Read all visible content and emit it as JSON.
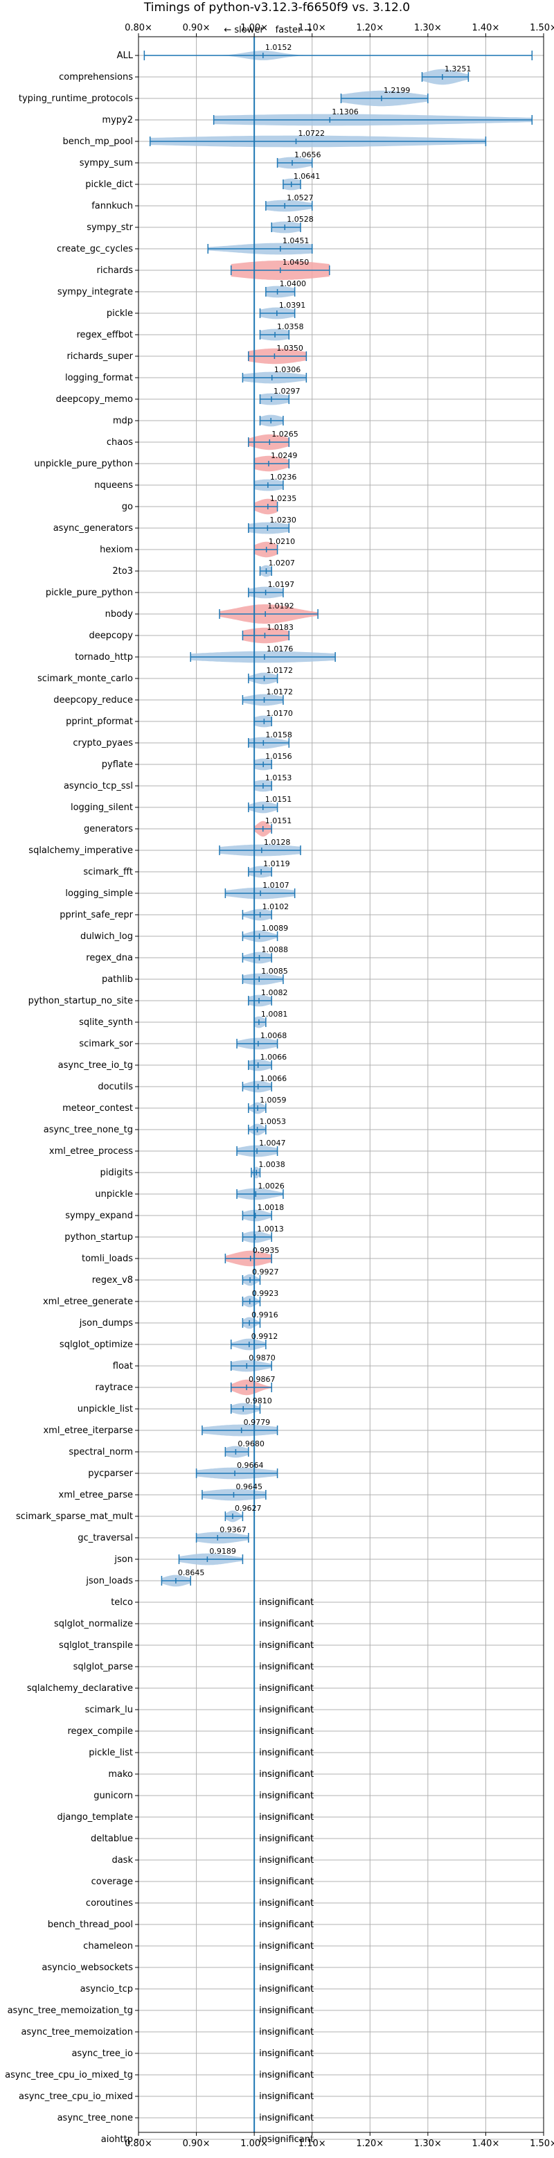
{
  "chart_data": {
    "type": "violin",
    "title": "Timings of python-v3.12.3-f6650f9 vs. 3.12.0",
    "annotation_slower": "← slower",
    "annotation_faster": "faster →",
    "xlim": [
      0.8,
      1.5
    ],
    "xticks": [
      0.8,
      0.9,
      1.0,
      1.1,
      1.2,
      1.3,
      1.4,
      1.5
    ],
    "xtick_labels": [
      "0.80×",
      "0.90×",
      "1.00×",
      "1.10×",
      "1.20×",
      "1.30×",
      "1.40×",
      "1.50×"
    ],
    "grid": true,
    "reference_line": 1.0,
    "colors": {
      "faster": "#a9c8e4",
      "slower": "#f4a6a6",
      "line": "#1f77b4",
      "grid": "#b0b0b0"
    },
    "insignificant_label": "insignificant",
    "benchmarks": [
      {
        "name": "ALL",
        "value": 1.0152,
        "label": "1.0152",
        "min": 0.81,
        "max": 1.48,
        "spread": 0.03,
        "width": 0.5,
        "color": "faster"
      },
      {
        "name": "comprehensions",
        "value": 1.3251,
        "label": "1.3251",
        "min": 1.29,
        "max": 1.37,
        "spread": 0.03,
        "width": 0.8,
        "color": "faster"
      },
      {
        "name": "typing_runtime_protocols",
        "value": 1.2199,
        "label": "1.2199",
        "min": 1.15,
        "max": 1.3,
        "spread": 0.06,
        "width": 0.8,
        "color": "faster"
      },
      {
        "name": "mypy2",
        "value": 1.1306,
        "label": "1.1306",
        "min": 0.93,
        "max": 1.48,
        "spread": 0.25,
        "width": 0.6,
        "color": "faster"
      },
      {
        "name": "bench_mp_pool",
        "value": 1.0722,
        "label": "1.0722",
        "min": 0.82,
        "max": 1.4,
        "spread": 0.25,
        "width": 0.6,
        "color": "faster"
      },
      {
        "name": "sympy_sum",
        "value": 1.0656,
        "label": "1.0656",
        "min": 1.04,
        "max": 1.1,
        "spread": 0.03,
        "width": 0.6,
        "color": "faster"
      },
      {
        "name": "pickle_dict",
        "value": 1.0641,
        "label": "1.0641",
        "min": 1.05,
        "max": 1.08,
        "spread": 0.02,
        "width": 0.6,
        "color": "faster"
      },
      {
        "name": "fannkuch",
        "value": 1.0527,
        "label": "1.0527",
        "min": 1.02,
        "max": 1.1,
        "spread": 0.04,
        "width": 0.6,
        "color": "faster"
      },
      {
        "name": "sympy_str",
        "value": 1.0528,
        "label": "1.0528",
        "min": 1.03,
        "max": 1.08,
        "spread": 0.03,
        "width": 0.6,
        "color": "faster"
      },
      {
        "name": "create_gc_cycles",
        "value": 1.0451,
        "label": "1.0451",
        "min": 0.92,
        "max": 1.1,
        "spread": 0.08,
        "width": 0.6,
        "color": "faster"
      },
      {
        "name": "richards",
        "value": 1.045,
        "label": "1.0450",
        "min": 0.96,
        "max": 1.13,
        "spread": 0.09,
        "width": 1.0,
        "color": "slower"
      },
      {
        "name": "sympy_integrate",
        "value": 1.04,
        "label": "1.0400",
        "min": 1.02,
        "max": 1.07,
        "spread": 0.03,
        "width": 0.6,
        "color": "faster"
      },
      {
        "name": "pickle",
        "value": 1.0391,
        "label": "1.0391",
        "min": 1.01,
        "max": 1.07,
        "spread": 0.03,
        "width": 0.6,
        "color": "faster"
      },
      {
        "name": "regex_effbot",
        "value": 1.0358,
        "label": "1.0358",
        "min": 1.01,
        "max": 1.06,
        "spread": 0.03,
        "width": 0.6,
        "color": "faster"
      },
      {
        "name": "richards_super",
        "value": 1.035,
        "label": "1.0350",
        "min": 0.99,
        "max": 1.09,
        "spread": 0.05,
        "width": 0.8,
        "color": "slower"
      },
      {
        "name": "logging_format",
        "value": 1.0306,
        "label": "1.0306",
        "min": 0.98,
        "max": 1.09,
        "spread": 0.05,
        "width": 0.6,
        "color": "faster"
      },
      {
        "name": "deepcopy_memo",
        "value": 1.0297,
        "label": "1.0297",
        "min": 1.01,
        "max": 1.06,
        "spread": 0.03,
        "width": 0.6,
        "color": "faster"
      },
      {
        "name": "mdp",
        "value": 1.0288,
        "label": "",
        "min": 1.01,
        "max": 1.05,
        "spread": 0.02,
        "width": 0.6,
        "color": "faster"
      },
      {
        "name": "chaos",
        "value": 1.0265,
        "label": "1.0265",
        "min": 0.99,
        "max": 1.06,
        "spread": 0.03,
        "width": 0.8,
        "color": "slower"
      },
      {
        "name": "unpickle_pure_python",
        "value": 1.0249,
        "label": "1.0249",
        "min": 1.0,
        "max": 1.06,
        "spread": 0.03,
        "width": 0.8,
        "color": "slower"
      },
      {
        "name": "nqueens",
        "value": 1.0236,
        "label": "1.0236",
        "min": 1.0,
        "max": 1.05,
        "spread": 0.03,
        "width": 0.6,
        "color": "faster"
      },
      {
        "name": "go",
        "value": 1.0235,
        "label": "1.0235",
        "min": 1.0,
        "max": 1.04,
        "spread": 0.02,
        "width": 0.8,
        "color": "slower"
      },
      {
        "name": "async_generators",
        "value": 1.023,
        "label": "1.0230",
        "min": 0.99,
        "max": 1.06,
        "spread": 0.04,
        "width": 0.6,
        "color": "faster"
      },
      {
        "name": "hexiom",
        "value": 1.021,
        "label": "1.0210",
        "min": 1.0,
        "max": 1.04,
        "spread": 0.02,
        "width": 0.8,
        "color": "slower"
      },
      {
        "name": "2to3",
        "value": 1.0207,
        "label": "1.0207",
        "min": 1.01,
        "max": 1.03,
        "spread": 0.01,
        "width": 0.6,
        "color": "faster"
      },
      {
        "name": "pickle_pure_python",
        "value": 1.0197,
        "label": "1.0197",
        "min": 0.99,
        "max": 1.05,
        "spread": 0.03,
        "width": 0.6,
        "color": "faster"
      },
      {
        "name": "nbody",
        "value": 1.0192,
        "label": "1.0192",
        "min": 0.94,
        "max": 1.11,
        "spread": 0.05,
        "width": 1.0,
        "color": "slower"
      },
      {
        "name": "deepcopy",
        "value": 1.0183,
        "label": "1.0183",
        "min": 0.98,
        "max": 1.06,
        "spread": 0.04,
        "width": 0.8,
        "color": "slower"
      },
      {
        "name": "tornado_http",
        "value": 1.0176,
        "label": "1.0176",
        "min": 0.89,
        "max": 1.14,
        "spread": 0.12,
        "width": 0.6,
        "color": "faster"
      },
      {
        "name": "scimark_monte_carlo",
        "value": 1.0172,
        "label": "1.0172",
        "min": 0.99,
        "max": 1.04,
        "spread": 0.02,
        "width": 0.6,
        "color": "faster"
      },
      {
        "name": "deepcopy_reduce",
        "value": 1.0172,
        "label": "1.0172",
        "min": 0.98,
        "max": 1.05,
        "spread": 0.03,
        "width": 0.6,
        "color": "faster"
      },
      {
        "name": "pprint_pformat",
        "value": 1.017,
        "label": "1.0170",
        "min": 1.0,
        "max": 1.03,
        "spread": 0.02,
        "width": 0.6,
        "color": "faster"
      },
      {
        "name": "crypto_pyaes",
        "value": 1.0158,
        "label": "1.0158",
        "min": 0.99,
        "max": 1.06,
        "spread": 0.03,
        "width": 0.6,
        "color": "faster"
      },
      {
        "name": "pyflate",
        "value": 1.0156,
        "label": "1.0156",
        "min": 1.0,
        "max": 1.03,
        "spread": 0.02,
        "width": 0.6,
        "color": "faster"
      },
      {
        "name": "asyncio_tcp_ssl",
        "value": 1.0153,
        "label": "1.0153",
        "min": 1.0,
        "max": 1.03,
        "spread": 0.02,
        "width": 0.6,
        "color": "faster"
      },
      {
        "name": "logging_silent",
        "value": 1.0151,
        "label": "1.0151",
        "min": 0.99,
        "max": 1.04,
        "spread": 0.02,
        "width": 0.6,
        "color": "faster"
      },
      {
        "name": "generators",
        "value": 1.0151,
        "label": "1.0151",
        "min": 1.0,
        "max": 1.03,
        "spread": 0.01,
        "width": 0.8,
        "color": "slower"
      },
      {
        "name": "sqlalchemy_imperative",
        "value": 1.0128,
        "label": "1.0128",
        "min": 0.94,
        "max": 1.08,
        "spread": 0.07,
        "width": 0.6,
        "color": "faster"
      },
      {
        "name": "scimark_fft",
        "value": 1.0119,
        "label": "1.0119",
        "min": 0.99,
        "max": 1.03,
        "spread": 0.02,
        "width": 0.6,
        "color": "faster"
      },
      {
        "name": "logging_simple",
        "value": 1.0107,
        "label": "1.0107",
        "min": 0.95,
        "max": 1.07,
        "spread": 0.05,
        "width": 0.6,
        "color": "faster"
      },
      {
        "name": "pprint_safe_repr",
        "value": 1.0102,
        "label": "1.0102",
        "min": 0.98,
        "max": 1.03,
        "spread": 0.02,
        "width": 0.6,
        "color": "faster"
      },
      {
        "name": "dulwich_log",
        "value": 1.0089,
        "label": "1.0089",
        "min": 0.98,
        "max": 1.04,
        "spread": 0.02,
        "width": 0.6,
        "color": "faster"
      },
      {
        "name": "regex_dna",
        "value": 1.0088,
        "label": "1.0088",
        "min": 0.98,
        "max": 1.03,
        "spread": 0.02,
        "width": 0.6,
        "color": "faster"
      },
      {
        "name": "pathlib",
        "value": 1.0085,
        "label": "1.0085",
        "min": 0.98,
        "max": 1.05,
        "spread": 0.03,
        "width": 0.6,
        "color": "faster"
      },
      {
        "name": "python_startup_no_site",
        "value": 1.0082,
        "label": "1.0082",
        "min": 0.99,
        "max": 1.03,
        "spread": 0.02,
        "width": 0.6,
        "color": "faster"
      },
      {
        "name": "sqlite_synth",
        "value": 1.0081,
        "label": "1.0081",
        "min": 1.0,
        "max": 1.02,
        "spread": 0.01,
        "width": 0.6,
        "color": "faster"
      },
      {
        "name": "scimark_sor",
        "value": 1.0068,
        "label": "1.0068",
        "min": 0.97,
        "max": 1.04,
        "spread": 0.03,
        "width": 0.6,
        "color": "faster"
      },
      {
        "name": "async_tree_io_tg",
        "value": 1.0066,
        "label": "1.0066",
        "min": 0.99,
        "max": 1.03,
        "spread": 0.02,
        "width": 0.6,
        "color": "faster"
      },
      {
        "name": "docutils",
        "value": 1.0066,
        "label": "1.0066",
        "min": 0.98,
        "max": 1.03,
        "spread": 0.02,
        "width": 0.6,
        "color": "faster"
      },
      {
        "name": "meteor_contest",
        "value": 1.0059,
        "label": "1.0059",
        "min": 0.99,
        "max": 1.02,
        "spread": 0.01,
        "width": 0.6,
        "color": "faster"
      },
      {
        "name": "async_tree_none_tg",
        "value": 1.0053,
        "label": "1.0053",
        "min": 0.99,
        "max": 1.02,
        "spread": 0.01,
        "width": 0.6,
        "color": "faster"
      },
      {
        "name": "xml_etree_process",
        "value": 1.0047,
        "label": "1.0047",
        "min": 0.97,
        "max": 1.04,
        "spread": 0.03,
        "width": 0.6,
        "color": "faster"
      },
      {
        "name": "pidigits",
        "value": 1.0038,
        "label": "1.0038",
        "min": 0.995,
        "max": 1.01,
        "spread": 0.005,
        "width": 0.6,
        "color": "faster"
      },
      {
        "name": "unpickle",
        "value": 1.0026,
        "label": "1.0026",
        "min": 0.97,
        "max": 1.05,
        "spread": 0.03,
        "width": 0.6,
        "color": "faster"
      },
      {
        "name": "sympy_expand",
        "value": 1.0018,
        "label": "1.0018",
        "min": 0.98,
        "max": 1.03,
        "spread": 0.02,
        "width": 0.6,
        "color": "faster"
      },
      {
        "name": "python_startup",
        "value": 1.0013,
        "label": "1.0013",
        "min": 0.98,
        "max": 1.03,
        "spread": 0.02,
        "width": 0.6,
        "color": "faster"
      },
      {
        "name": "tomli_loads",
        "value": 0.9935,
        "label": "0.9935",
        "min": 0.95,
        "max": 1.03,
        "spread": 0.03,
        "width": 0.8,
        "color": "slower"
      },
      {
        "name": "regex_v8",
        "value": 0.9927,
        "label": "0.9927",
        "min": 0.98,
        "max": 1.01,
        "spread": 0.01,
        "width": 0.6,
        "color": "faster"
      },
      {
        "name": "xml_etree_generate",
        "value": 0.9923,
        "label": "0.9923",
        "min": 0.98,
        "max": 1.01,
        "spread": 0.01,
        "width": 0.6,
        "color": "faster"
      },
      {
        "name": "json_dumps",
        "value": 0.9916,
        "label": "0.9916",
        "min": 0.98,
        "max": 1.01,
        "spread": 0.01,
        "width": 0.6,
        "color": "faster"
      },
      {
        "name": "sqlglot_optimize",
        "value": 0.9912,
        "label": "0.9912",
        "min": 0.96,
        "max": 1.02,
        "spread": 0.02,
        "width": 0.6,
        "color": "faster"
      },
      {
        "name": "float",
        "value": 0.987,
        "label": "0.9870",
        "min": 0.96,
        "max": 1.03,
        "spread": 0.03,
        "width": 0.6,
        "color": "faster"
      },
      {
        "name": "raytrace",
        "value": 0.9867,
        "label": "0.9867",
        "min": 0.96,
        "max": 1.03,
        "spread": 0.02,
        "width": 0.8,
        "color": "slower"
      },
      {
        "name": "unpickle_list",
        "value": 0.981,
        "label": "0.9810",
        "min": 0.96,
        "max": 1.01,
        "spread": 0.02,
        "width": 0.6,
        "color": "faster"
      },
      {
        "name": "xml_etree_iterparse",
        "value": 0.9779,
        "label": "0.9779",
        "min": 0.91,
        "max": 1.04,
        "spread": 0.06,
        "width": 0.6,
        "color": "faster"
      },
      {
        "name": "spectral_norm",
        "value": 0.968,
        "label": "0.9680",
        "min": 0.95,
        "max": 0.99,
        "spread": 0.02,
        "width": 0.6,
        "color": "faster"
      },
      {
        "name": "pycparser",
        "value": 0.9664,
        "label": "0.9664",
        "min": 0.9,
        "max": 1.04,
        "spread": 0.06,
        "width": 0.6,
        "color": "faster"
      },
      {
        "name": "xml_etree_parse",
        "value": 0.9645,
        "label": "0.9645",
        "min": 0.91,
        "max": 1.02,
        "spread": 0.05,
        "width": 0.6,
        "color": "faster"
      },
      {
        "name": "scimark_sparse_mat_mult",
        "value": 0.9627,
        "label": "0.9627",
        "min": 0.95,
        "max": 0.98,
        "spread": 0.01,
        "width": 0.6,
        "color": "faster"
      },
      {
        "name": "gc_traversal",
        "value": 0.9367,
        "label": "0.9367",
        "min": 0.9,
        "max": 0.99,
        "spread": 0.04,
        "width": 0.6,
        "color": "faster"
      },
      {
        "name": "json",
        "value": 0.9189,
        "label": "0.9189",
        "min": 0.87,
        "max": 0.98,
        "spread": 0.04,
        "width": 0.6,
        "color": "faster"
      },
      {
        "name": "json_loads",
        "value": 0.8645,
        "label": "0.8645",
        "min": 0.84,
        "max": 0.89,
        "spread": 0.02,
        "width": 0.6,
        "color": "faster"
      },
      {
        "name": "telco",
        "insignificant": true
      },
      {
        "name": "sqlglot_normalize",
        "insignificant": true
      },
      {
        "name": "sqlglot_transpile",
        "insignificant": true
      },
      {
        "name": "sqlglot_parse",
        "insignificant": true
      },
      {
        "name": "sqlalchemy_declarative",
        "insignificant": true
      },
      {
        "name": "scimark_lu",
        "insignificant": true
      },
      {
        "name": "regex_compile",
        "insignificant": true
      },
      {
        "name": "pickle_list",
        "insignificant": true
      },
      {
        "name": "mako",
        "insignificant": true
      },
      {
        "name": "gunicorn",
        "insignificant": true
      },
      {
        "name": "django_template",
        "insignificant": true
      },
      {
        "name": "deltablue",
        "insignificant": true
      },
      {
        "name": "dask",
        "insignificant": true
      },
      {
        "name": "coverage",
        "insignificant": true
      },
      {
        "name": "coroutines",
        "insignificant": true
      },
      {
        "name": "bench_thread_pool",
        "insignificant": true
      },
      {
        "name": "chameleon",
        "insignificant": true
      },
      {
        "name": "asyncio_websockets",
        "insignificant": true
      },
      {
        "name": "asyncio_tcp",
        "insignificant": true
      },
      {
        "name": "async_tree_memoization_tg",
        "insignificant": true
      },
      {
        "name": "async_tree_memoization",
        "insignificant": true
      },
      {
        "name": "async_tree_io",
        "insignificant": true
      },
      {
        "name": "async_tree_cpu_io_mixed_tg",
        "insignificant": true
      },
      {
        "name": "async_tree_cpu_io_mixed",
        "insignificant": true
      },
      {
        "name": "async_tree_none",
        "insignificant": true
      },
      {
        "name": "aiohttp",
        "insignificant": true
      }
    ]
  }
}
